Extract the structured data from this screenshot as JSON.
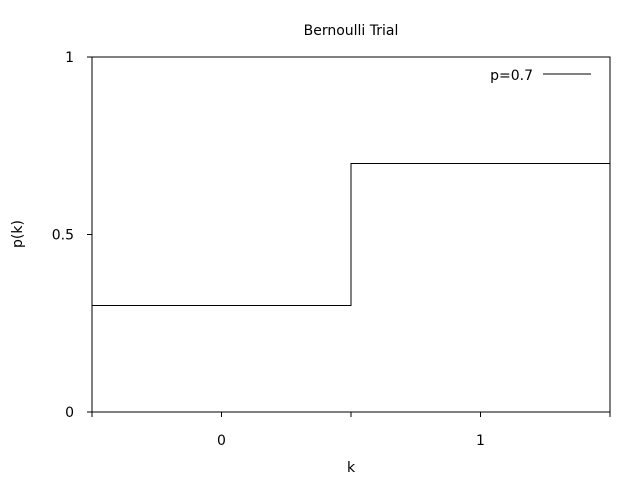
{
  "chart_data": {
    "type": "line",
    "title": "Bernoulli Trial",
    "xlabel": "k",
    "ylabel": "p(k)",
    "xlim": [
      -0.5,
      1.5
    ],
    "ylim": [
      0,
      1
    ],
    "x_ticks": [
      {
        "value": -0.5,
        "label": ""
      },
      {
        "value": 0,
        "label": "0"
      },
      {
        "value": 0.5,
        "label": ""
      },
      {
        "value": 1,
        "label": "1"
      },
      {
        "value": 1.5,
        "label": ""
      }
    ],
    "y_ticks": [
      {
        "value": 0,
        "label": "0"
      },
      {
        "value": 0.5,
        "label": "0.5"
      },
      {
        "value": 1,
        "label": "1"
      }
    ],
    "grid": false,
    "legend_position": "top-right",
    "series": [
      {
        "name": "p=0.7",
        "color": "#000000",
        "step": true,
        "points": [
          {
            "x": -0.5,
            "y": 0.3
          },
          {
            "x": 0.5,
            "y": 0.3
          },
          {
            "x": 0.5,
            "y": 0.7
          },
          {
            "x": 1.5,
            "y": 0.7
          }
        ]
      }
    ]
  }
}
